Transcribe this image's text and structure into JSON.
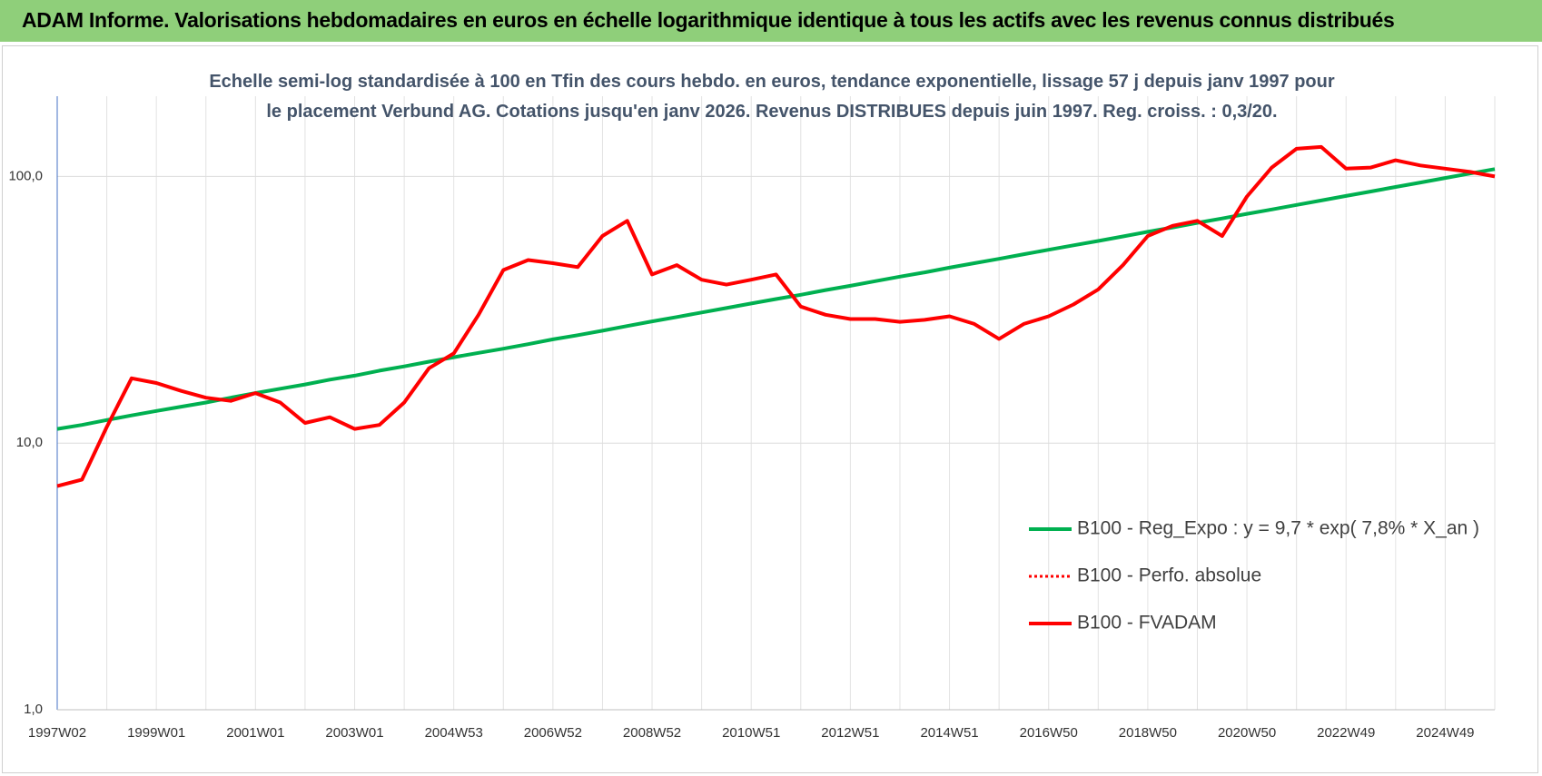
{
  "page_title": "ADAM Informe. Valorisations hebdomadaires en euros en échelle logarithmique identique à tous les actifs avec les revenus connus distribués",
  "chart_data": {
    "type": "line",
    "title": "Echelle semi-log standardisée à 100 en Tfin des cours hebdo. en euros, tendance exponentielle, lissage 57 j depuis janv 1997 pour le placement Verbund AG. Cotations jusqu'en janv 2026. Revenus DISTRIBUES depuis juin 1997. Reg. croiss. : 0,3/20.",
    "log_scale": true,
    "grid": true,
    "legend": "right",
    "ylim": [
      1,
      200
    ],
    "yticks": [
      {
        "value": 1,
        "label": "1,0"
      },
      {
        "value": 10,
        "label": "10,0"
      },
      {
        "value": 100,
        "label": "100,0"
      }
    ],
    "categories": [
      "1997W02",
      null,
      null,
      null,
      "1999W01",
      null,
      null,
      null,
      "2001W01",
      null,
      null,
      null,
      "2003W01",
      null,
      null,
      null,
      "2004W53",
      null,
      null,
      null,
      "2006W52",
      null,
      null,
      null,
      "2008W52",
      null,
      null,
      null,
      "2010W51",
      null,
      null,
      null,
      "2012W51",
      null,
      null,
      null,
      "2014W51",
      null,
      null,
      null,
      "2016W50",
      null,
      null,
      null,
      "2018W50",
      null,
      null,
      null,
      "2020W50",
      null,
      null,
      null,
      "2022W49",
      null,
      null,
      null,
      "2024W49",
      null,
      null
    ],
    "series": [
      {
        "name": "B100 - Reg_Expo : y = 9,7 * exp( 7,8% *  X_an )",
        "color": "#00b050",
        "style": "solid",
        "values": [
          11.3,
          11.7,
          12.2,
          12.7,
          13.2,
          13.7,
          14.2,
          14.8,
          15.4,
          16.0,
          16.6,
          17.3,
          17.9,
          18.7,
          19.4,
          20.2,
          21.0,
          21.8,
          22.6,
          23.5,
          24.5,
          25.4,
          26.4,
          27.5,
          28.6,
          29.7,
          30.9,
          32.1,
          33.4,
          34.7,
          36.0,
          37.5,
          38.9,
          40.5,
          42.1,
          43.7,
          45.5,
          47.3,
          49.1,
          51.1,
          53.1,
          55.2,
          57.3,
          59.6,
          62.0,
          64.4,
          67.0,
          69.6,
          72.4,
          75.2,
          78.2,
          81.3,
          84.5,
          87.8,
          91.3,
          94.9,
          98.7,
          102.6,
          106.6
        ]
      },
      {
        "name": "B100 - Perfo. absolue",
        "color": "#ff0000",
        "style": "dotted",
        "values": [
          null,
          null,
          null,
          null,
          null,
          null,
          null,
          null,
          null,
          null,
          null,
          null,
          null,
          null,
          null,
          null,
          null,
          null,
          null,
          null,
          null,
          null,
          null,
          null,
          null,
          null,
          null,
          null,
          null,
          null,
          null,
          null,
          null,
          null,
          null,
          null,
          null,
          null,
          null,
          null,
          null,
          null,
          null,
          null,
          null,
          null,
          null,
          null,
          null,
          null,
          null,
          null,
          null,
          null,
          null,
          null,
          null,
          null,
          null
        ]
      },
      {
        "name": "B100 - FVADAM",
        "color": "#ff0000",
        "style": "solid",
        "values": [
          6.9,
          7.3,
          11.5,
          17.5,
          16.8,
          15.7,
          14.8,
          14.4,
          15.4,
          14.2,
          11.9,
          12.5,
          11.3,
          11.7,
          14.2,
          19.1,
          21.7,
          30.3,
          44.6,
          48.6,
          47.3,
          45.7,
          59.8,
          68.2,
          42.9,
          46.5,
          41.0,
          39.3,
          41.0,
          42.9,
          32.5,
          30.3,
          29.2,
          29.2,
          28.5,
          29.0,
          29.9,
          28.0,
          24.6,
          28.0,
          29.9,
          33.1,
          37.7,
          46.5,
          59.8,
          65.3,
          68.2,
          59.8,
          84.1,
          108,
          127,
          129,
          107,
          108,
          115,
          110,
          107,
          104,
          100
        ]
      }
    ]
  }
}
